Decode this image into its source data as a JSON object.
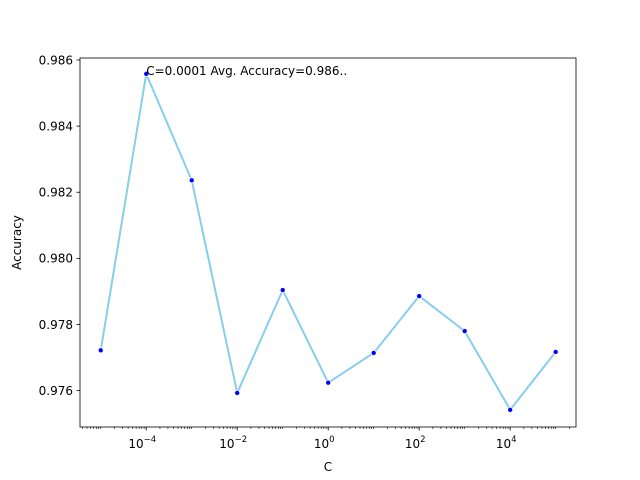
{
  "chart_data": {
    "type": "line",
    "xlabel": "C",
    "ylabel": "Accuracy",
    "xscale": "log",
    "x": [
      1e-05,
      0.0001,
      0.001,
      0.01,
      0.1,
      1,
      10,
      100,
      1000,
      10000,
      100000
    ],
    "series": [
      {
        "values": [
          0.97722,
          0.98558,
          0.98236,
          0.97593,
          0.97904,
          0.97624,
          0.97714,
          0.97886,
          0.9778,
          0.97542,
          0.97717
        ],
        "line_color": "#87ceeb",
        "marker_color": "#0000ff"
      }
    ],
    "xlim": [
      3.5e-06,
      280000
    ],
    "ylim": [
      0.9749,
      0.98606
    ],
    "x_ticks": [
      {
        "value": 0.0001,
        "base": "10",
        "exp": "−4"
      },
      {
        "value": 0.01,
        "base": "10",
        "exp": "−2"
      },
      {
        "value": 1,
        "base": "10",
        "exp": "0"
      },
      {
        "value": 100,
        "base": "10",
        "exp": "2"
      },
      {
        "value": 10000,
        "base": "10",
        "exp": "4"
      }
    ],
    "y_ticks": [
      {
        "value": 0.976,
        "label": "0.976"
      },
      {
        "value": 0.978,
        "label": "0.978"
      },
      {
        "value": 0.98,
        "label": "0.980"
      },
      {
        "value": 0.982,
        "label": "0.982"
      },
      {
        "value": 0.984,
        "label": "0.984"
      },
      {
        "value": 0.986,
        "label": "0.986"
      }
    ],
    "annotation": {
      "text": "C=0.0001 Avg. Accuracy=0.986..",
      "x": 0.0001,
      "y": 0.98558
    },
    "grid": false,
    "legend": "none"
  }
}
